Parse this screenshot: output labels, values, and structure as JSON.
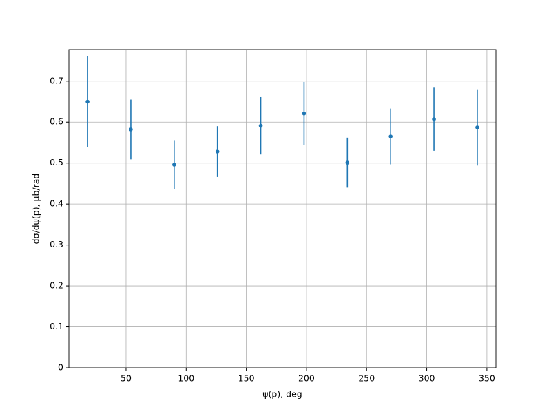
{
  "chart_data": {
    "type": "errorbar",
    "x_label": "ψ(p), deg",
    "y_label": "dσ/dψ(p), μb/rad",
    "x": [
      18,
      54,
      90,
      126,
      162,
      198,
      234,
      270,
      306,
      342
    ],
    "values": [
      0.65,
      0.582,
      0.496,
      0.528,
      0.591,
      0.621,
      0.501,
      0.565,
      0.607,
      0.587
    ],
    "errors": [
      0.111,
      0.073,
      0.06,
      0.062,
      0.07,
      0.077,
      0.061,
      0.068,
      0.077,
      0.093
    ],
    "color": "#1f77b4",
    "xlim": [
      2.5,
      357.5
    ],
    "xticks": [
      50,
      100,
      150,
      200,
      250,
      300,
      350
    ],
    "ylim": [
      0,
      0.777
    ],
    "yticks": [
      0.0,
      0.1,
      0.2,
      0.3,
      0.4,
      0.5,
      0.6,
      0.7
    ],
    "grid": true
  }
}
